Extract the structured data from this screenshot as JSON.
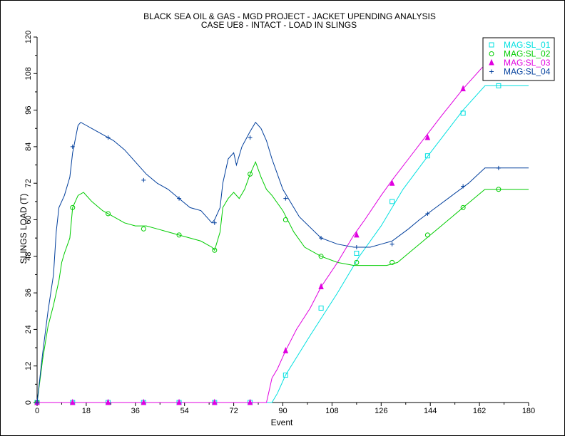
{
  "chart_data": {
    "type": "line",
    "title": "BLACK SEA OIL & GAS - MGD PROJECT - JACKET UPENDING ANALYSIS",
    "subtitle": "CASE UE8 - INTACT - LOAD IN SLINGS",
    "xlabel": "Event",
    "ylabel": "SLINGS LOAD (T)",
    "xlim": [
      0,
      180
    ],
    "ylim": [
      0,
      120
    ],
    "x_ticks": [
      0,
      18,
      36,
      54,
      72,
      90,
      108,
      126,
      144,
      162,
      180
    ],
    "y_ticks": [
      0,
      12,
      24,
      36,
      48,
      60,
      72,
      84,
      96,
      108,
      120
    ],
    "legend_position": "top-right",
    "series": [
      {
        "name": "MAG:SL_01",
        "color": "#00e0e0",
        "marker": "square",
        "points": [
          [
            0,
            0
          ],
          [
            86,
            0
          ],
          [
            88,
            3
          ],
          [
            91,
            9
          ],
          [
            100,
            22
          ],
          [
            110,
            36
          ],
          [
            118,
            48
          ],
          [
            126,
            58
          ],
          [
            134,
            70
          ],
          [
            144,
            82
          ],
          [
            156,
            96
          ],
          [
            164,
            104
          ],
          [
            180,
            104
          ]
        ],
        "marker_points": [
          [
            0,
            0
          ],
          [
            13,
            0
          ],
          [
            26,
            0
          ],
          [
            39,
            0
          ],
          [
            52,
            0
          ],
          [
            65,
            0
          ],
          [
            78,
            0
          ],
          [
            91,
            9
          ],
          [
            104,
            31
          ],
          [
            117,
            49
          ],
          [
            130,
            66
          ],
          [
            143,
            81
          ],
          [
            156,
            95
          ],
          [
            169,
            104
          ]
        ]
      },
      {
        "name": "MAG:SL_02",
        "color": "#00cc00",
        "marker": "circle",
        "points": [
          [
            0,
            0
          ],
          [
            2,
            14
          ],
          [
            4,
            25
          ],
          [
            6,
            32
          ],
          [
            8,
            40
          ],
          [
            9,
            46
          ],
          [
            10,
            49
          ],
          [
            12,
            54
          ],
          [
            13,
            64
          ],
          [
            15,
            68
          ],
          [
            17,
            69
          ],
          [
            20,
            66
          ],
          [
            24,
            63
          ],
          [
            28,
            61
          ],
          [
            32,
            59
          ],
          [
            36,
            58
          ],
          [
            40,
            58
          ],
          [
            44,
            57
          ],
          [
            48,
            56
          ],
          [
            52,
            55
          ],
          [
            56,
            54
          ],
          [
            60,
            53
          ],
          [
            62,
            52
          ],
          [
            64,
            51
          ],
          [
            65,
            50
          ],
          [
            67,
            56
          ],
          [
            68,
            64
          ],
          [
            70,
            67
          ],
          [
            72,
            69
          ],
          [
            74,
            67
          ],
          [
            76,
            70
          ],
          [
            78,
            75
          ],
          [
            80,
            79
          ],
          [
            82,
            74
          ],
          [
            84,
            70
          ],
          [
            86,
            68
          ],
          [
            90,
            63
          ],
          [
            94,
            56
          ],
          [
            98,
            51
          ],
          [
            104,
            48
          ],
          [
            110,
            46
          ],
          [
            116,
            45
          ],
          [
            122,
            45
          ],
          [
            128,
            45
          ],
          [
            132,
            46
          ],
          [
            136,
            49
          ],
          [
            140,
            52
          ],
          [
            144,
            55
          ],
          [
            148,
            58
          ],
          [
            152,
            61
          ],
          [
            156,
            64
          ],
          [
            160,
            67
          ],
          [
            164,
            70
          ],
          [
            180,
            70
          ]
        ],
        "marker_points": [
          [
            0,
            0
          ],
          [
            13,
            64
          ],
          [
            26,
            62
          ],
          [
            39,
            57
          ],
          [
            52,
            55
          ],
          [
            65,
            50
          ],
          [
            78,
            75
          ],
          [
            91,
            60
          ],
          [
            104,
            48
          ],
          [
            117,
            46
          ],
          [
            130,
            46
          ],
          [
            143,
            55
          ],
          [
            156,
            64
          ],
          [
            169,
            70
          ]
        ]
      },
      {
        "name": "MAG:SL_03",
        "color": "#e000e0",
        "marker": "triangle",
        "points": [
          [
            0,
            0
          ],
          [
            84,
            0
          ],
          [
            85,
            4
          ],
          [
            86,
            8
          ],
          [
            88,
            11
          ],
          [
            91,
            17
          ],
          [
            95,
            24
          ],
          [
            100,
            31
          ],
          [
            104,
            38
          ],
          [
            110,
            46
          ],
          [
            116,
            55
          ],
          [
            120,
            60
          ],
          [
            126,
            68
          ],
          [
            130,
            73
          ],
          [
            136,
            80
          ],
          [
            142,
            87
          ],
          [
            148,
            94
          ],
          [
            156,
            103
          ],
          [
            163,
            110
          ],
          [
            180,
            110
          ]
        ],
        "marker_points": [
          [
            0,
            0
          ],
          [
            13,
            0
          ],
          [
            26,
            0
          ],
          [
            39,
            0
          ],
          [
            52,
            0
          ],
          [
            65,
            0
          ],
          [
            78,
            0
          ],
          [
            91,
            17
          ],
          [
            104,
            38
          ],
          [
            117,
            55
          ],
          [
            130,
            72
          ],
          [
            143,
            87
          ],
          [
            156,
            103
          ],
          [
            169,
            110
          ]
        ]
      },
      {
        "name": "MAG:SL_04",
        "color": "#003e9c",
        "marker": "plus",
        "points": [
          [
            0,
            0
          ],
          [
            2,
            16
          ],
          [
            4,
            30
          ],
          [
            6,
            42
          ],
          [
            7,
            56
          ],
          [
            8,
            64
          ],
          [
            10,
            68
          ],
          [
            12,
            74
          ],
          [
            13,
            82
          ],
          [
            15,
            91
          ],
          [
            16,
            92
          ],
          [
            18,
            91
          ],
          [
            20,
            90
          ],
          [
            24,
            88
          ],
          [
            28,
            86
          ],
          [
            32,
            83
          ],
          [
            36,
            79
          ],
          [
            40,
            75
          ],
          [
            44,
            72
          ],
          [
            48,
            70
          ],
          [
            52,
            67
          ],
          [
            56,
            64
          ],
          [
            60,
            63
          ],
          [
            62,
            61
          ],
          [
            64,
            59
          ],
          [
            65,
            60
          ],
          [
            67,
            64
          ],
          [
            68,
            72
          ],
          [
            70,
            80
          ],
          [
            72,
            82
          ],
          [
            73,
            78
          ],
          [
            75,
            84
          ],
          [
            78,
            89
          ],
          [
            80,
            92
          ],
          [
            82,
            90
          ],
          [
            84,
            86
          ],
          [
            86,
            80
          ],
          [
            90,
            70
          ],
          [
            96,
            61
          ],
          [
            104,
            54
          ],
          [
            110,
            52
          ],
          [
            116,
            51
          ],
          [
            122,
            51
          ],
          [
            126,
            52
          ],
          [
            130,
            53
          ],
          [
            136,
            57
          ],
          [
            140,
            60
          ],
          [
            146,
            64
          ],
          [
            152,
            68
          ],
          [
            158,
            72
          ],
          [
            164,
            77
          ],
          [
            180,
            77
          ]
        ],
        "marker_points": [
          [
            0,
            0
          ],
          [
            13,
            84
          ],
          [
            26,
            87
          ],
          [
            39,
            73
          ],
          [
            52,
            67
          ],
          [
            65,
            59
          ],
          [
            78,
            87
          ],
          [
            91,
            67
          ],
          [
            104,
            54
          ],
          [
            117,
            51
          ],
          [
            130,
            52
          ],
          [
            143,
            62
          ],
          [
            156,
            71
          ],
          [
            169,
            77
          ]
        ]
      }
    ]
  }
}
